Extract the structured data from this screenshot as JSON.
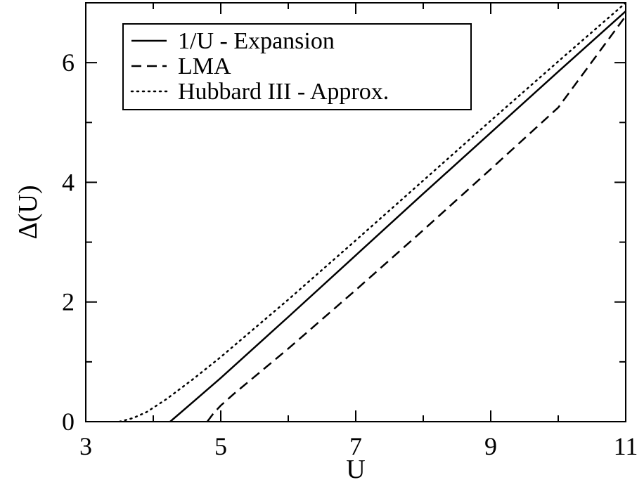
{
  "chart_data": {
    "type": "line",
    "title": "",
    "xlabel": "U",
    "ylabel": "Δ(U)",
    "xlim": [
      3,
      11
    ],
    "ylim": [
      0,
      7
    ],
    "xticks": [
      "3",
      "5",
      "7",
      "9",
      "11"
    ],
    "yticks": [
      "0",
      "2",
      "4",
      "6"
    ],
    "grid": false,
    "legend_position": "top-left",
    "series": [
      {
        "name": "1/U - Expansion",
        "style": "solid",
        "x": [
          4.25,
          4.6,
          5.0,
          6.0,
          7.0,
          8.0,
          9.0,
          10.0,
          11.0
        ],
        "y": [
          0.0,
          0.34,
          0.73,
          1.75,
          2.78,
          3.81,
          4.83,
          5.85,
          6.86
        ]
      },
      {
        "name": "LMA",
        "style": "dashed",
        "x": [
          4.8,
          4.9,
          5.0,
          5.2,
          5.5,
          6.0,
          7.0,
          8.0,
          9.0,
          10.0,
          11.0
        ],
        "y": [
          0.0,
          0.15,
          0.27,
          0.47,
          0.75,
          1.22,
          2.2,
          3.2,
          4.22,
          5.25,
          6.78
        ]
      },
      {
        "name": "Hubbard III - Approx.",
        "style": "dotted",
        "x": [
          3.5,
          3.7,
          3.9,
          4.2,
          4.6,
          5.0,
          6.0,
          7.0,
          8.0,
          9.0,
          10.0,
          11.0
        ],
        "y": [
          0.0,
          0.06,
          0.16,
          0.38,
          0.72,
          1.08,
          2.04,
          3.03,
          4.03,
          5.03,
          6.02,
          7.0
        ]
      }
    ]
  }
}
